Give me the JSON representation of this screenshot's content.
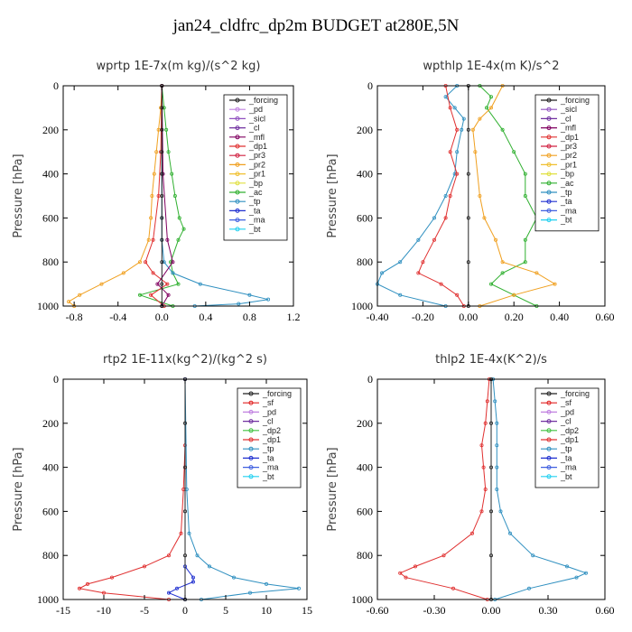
{
  "suptitle": "jan24_cldfrc_dp2m  BUDGET at280E,5N",
  "colors": {
    "_forcing": "#222222",
    "_sf": "#e02020",
    "_pd": "#c080e0",
    "_sicl": "#9050c0",
    "_cl": "#7030a0",
    "_mfl": "#800060",
    "_dp1": "#e03030",
    "_dp2": "#40c040",
    "_pr3": "#d02040",
    "_pr2": "#f0a020",
    "_pr1": "#f0c030",
    "_bp": "#e0e040",
    "_ac": "#30b030",
    "_tp": "#3090c0",
    "_ta": "#2030d0",
    "_ma": "#4060e0",
    "_bt": "#20d0f0"
  },
  "chart_data": [
    {
      "type": "line",
      "title": "wprtp   1E-7x(m kg)/(s^2 kg)",
      "ylabel": "Pressure [hPa]",
      "xlim": [
        -0.9,
        1.2
      ],
      "xticks": [
        "-0.8",
        "-0.4",
        "0.0",
        "0.4",
        "0.8",
        "1.2"
      ],
      "xtick_values": [
        -0.8,
        -0.4,
        0.0,
        0.4,
        0.8,
        1.2
      ],
      "ylim": [
        1000,
        0
      ],
      "yticks": [
        "0",
        "200",
        "400",
        "600",
        "800",
        "1000"
      ],
      "ytick_values": [
        0,
        200,
        400,
        600,
        800,
        1000
      ],
      "legend": [
        "_forcing",
        "_pd",
        "_sicl",
        "_cl",
        "_mfl",
        "_dp1",
        "_pr3",
        "_pr2",
        "_pr1",
        "_bp",
        "_ac",
        "_tp",
        "_ta",
        "_ma",
        "_bt"
      ],
      "series": [
        {
          "name": "_ac",
          "pressure": [
            0,
            100,
            200,
            300,
            400,
            500,
            600,
            650,
            700,
            800,
            850,
            900,
            950,
            1000
          ],
          "values": [
            0,
            0.02,
            0.04,
            0.06,
            0.09,
            0.12,
            0.16,
            0.2,
            0.15,
            0.08,
            0.1,
            0.15,
            -0.2,
            0.1
          ]
        },
        {
          "name": "_pr2",
          "pressure": [
            0,
            100,
            200,
            300,
            400,
            500,
            600,
            700,
            800,
            850,
            900,
            950,
            980,
            1000
          ],
          "values": [
            0,
            -0.01,
            -0.03,
            -0.05,
            -0.07,
            -0.09,
            -0.1,
            -0.12,
            -0.2,
            -0.35,
            -0.55,
            -0.75,
            -0.85,
            -0.8
          ]
        },
        {
          "name": "_tp",
          "pressure": [
            0,
            200,
            400,
            600,
            700,
            800,
            850,
            900,
            950,
            970,
            990,
            1000
          ],
          "values": [
            0,
            0,
            0,
            0,
            0,
            0.02,
            0.1,
            0.35,
            0.8,
            0.97,
            0.7,
            0.3
          ]
        },
        {
          "name": "_dp1",
          "pressure": [
            0,
            300,
            500,
            700,
            800,
            850,
            900,
            950,
            1000
          ],
          "values": [
            0,
            -0.01,
            -0.03,
            -0.08,
            -0.15,
            -0.08,
            0.05,
            -0.1,
            0.02
          ]
        },
        {
          "name": "_mfl",
          "pressure": [
            0,
            400,
            700,
            800,
            900,
            950,
            1000
          ],
          "values": [
            0,
            0.01,
            0.05,
            0.1,
            -0.04,
            0.06,
            0
          ]
        },
        {
          "name": "_forcing",
          "pressure": [
            0,
            100,
            200,
            300,
            400,
            500,
            600,
            700,
            800,
            900,
            1000
          ],
          "values": [
            0,
            0,
            0,
            0,
            0,
            0,
            0,
            0,
            0,
            0,
            0
          ]
        }
      ]
    },
    {
      "type": "line",
      "title": "wpthlp   1E-4x(m K)/s^2",
      "ylabel": "Pressure [hPa]",
      "xlim": [
        -0.4,
        0.6
      ],
      "xticks": [
        "-0.40",
        "-0.20",
        "0.00",
        "0.20",
        "0.40",
        "0.60"
      ],
      "xtick_values": [
        -0.4,
        -0.2,
        0.0,
        0.2,
        0.4,
        0.6
      ],
      "ylim": [
        1000,
        0
      ],
      "yticks": [
        "0",
        "200",
        "400",
        "600",
        "800",
        "1000"
      ],
      "ytick_values": [
        0,
        200,
        400,
        600,
        800,
        1000
      ],
      "legend": [
        "_forcing",
        "_sicl",
        "_cl",
        "_mfl",
        "_dp1",
        "_pr3",
        "_pr2",
        "_pr1",
        "_bp",
        "_ac",
        "_tp",
        "_ta",
        "_ma",
        "_bt"
      ],
      "series": [
        {
          "name": "_tp",
          "pressure": [
            0,
            50,
            100,
            150,
            200,
            300,
            400,
            500,
            600,
            700,
            800,
            850,
            900,
            950,
            1000
          ],
          "values": [
            -0.05,
            -0.1,
            -0.06,
            -0.02,
            -0.03,
            -0.05,
            -0.06,
            -0.1,
            -0.15,
            -0.22,
            -0.3,
            -0.38,
            -0.4,
            -0.3,
            -0.1
          ]
        },
        {
          "name": "_ac",
          "pressure": [
            0,
            50,
            100,
            200,
            300,
            400,
            500,
            600,
            700,
            800,
            850,
            900,
            950,
            1000
          ],
          "values": [
            0.05,
            0.1,
            0.08,
            0.15,
            0.2,
            0.25,
            0.25,
            0.3,
            0.25,
            0.25,
            0.15,
            0.1,
            0.2,
            0.3
          ]
        },
        {
          "name": "_pr2",
          "pressure": [
            0,
            100,
            150,
            200,
            300,
            500,
            600,
            700,
            800,
            850,
            900,
            950,
            1000
          ],
          "values": [
            0.15,
            0.1,
            0.05,
            0.02,
            0.03,
            0.05,
            0.07,
            0.12,
            0.15,
            0.3,
            0.38,
            0.2,
            0.05
          ]
        },
        {
          "name": "_dp1",
          "pressure": [
            0,
            100,
            200,
            300,
            400,
            500,
            600,
            700,
            800,
            850,
            900,
            950,
            1000
          ],
          "values": [
            -0.1,
            -0.08,
            -0.05,
            -0.08,
            -0.05,
            -0.08,
            -0.1,
            -0.15,
            -0.2,
            -0.22,
            -0.12,
            -0.05,
            -0.02
          ]
        },
        {
          "name": "_forcing",
          "pressure": [
            0,
            200,
            400,
            600,
            800,
            1000
          ],
          "values": [
            0,
            0,
            0,
            0,
            0,
            0
          ]
        }
      ]
    },
    {
      "type": "line",
      "title": "rtp2   1E-11x(kg^2)/(kg^2 s)",
      "ylabel": "Pressure [hPa]",
      "xlim": [
        -15,
        15
      ],
      "xticks": [
        "-15",
        "-10",
        "-5",
        "0",
        "5",
        "10",
        "15"
      ],
      "xtick_values": [
        -15,
        -10,
        -5,
        0,
        5,
        10,
        15
      ],
      "ylim": [
        1000,
        0
      ],
      "yticks": [
        "0",
        "200",
        "400",
        "600",
        "800",
        "1000"
      ],
      "ytick_values": [
        0,
        200,
        400,
        600,
        800,
        1000
      ],
      "legend": [
        "_forcing",
        "_sf",
        "_pd",
        "_cl",
        "_dp2",
        "_dp1",
        "_tp",
        "_ta",
        "_ma",
        "_bt"
      ],
      "series": [
        {
          "name": "_dp1",
          "pressure": [
            0,
            300,
            500,
            700,
            800,
            850,
            900,
            930,
            950,
            970,
            1000
          ],
          "values": [
            0,
            0,
            -0.2,
            -0.5,
            -2,
            -5,
            -9,
            -12,
            -13,
            -10,
            -2
          ]
        },
        {
          "name": "_tp",
          "pressure": [
            0,
            500,
            700,
            800,
            850,
            900,
            930,
            950,
            970,
            1000
          ],
          "values": [
            0,
            0.2,
            0.5,
            1.5,
            3,
            6,
            10,
            14,
            8,
            2
          ]
        },
        {
          "name": "_ta",
          "pressure": [
            0,
            850,
            900,
            920,
            950,
            970,
            1000
          ],
          "values": [
            0,
            0,
            1,
            1,
            -1,
            -2,
            0
          ]
        },
        {
          "name": "_forcing",
          "pressure": [
            0,
            200,
            400,
            600,
            800,
            1000
          ],
          "values": [
            0,
            0,
            0,
            0,
            0,
            0
          ]
        }
      ]
    },
    {
      "type": "line",
      "title": "thlp2   1E-4x(K^2)/s",
      "ylabel": "Pressure [hPa]",
      "xlim": [
        -0.6,
        0.6
      ],
      "xticks": [
        "-0.60",
        "-0.30",
        "0.00",
        "0.30",
        "0.60"
      ],
      "xtick_values": [
        -0.6,
        -0.3,
        0.0,
        0.3,
        0.6
      ],
      "ylim": [
        1000,
        0
      ],
      "yticks": [
        "0",
        "200",
        "400",
        "600",
        "800",
        "1000"
      ],
      "ytick_values": [
        0,
        200,
        400,
        600,
        800,
        1000
      ],
      "legend": [
        "_forcing",
        "_sf",
        "_pd",
        "_cl",
        "_dp2",
        "_dp1",
        "_tp",
        "_ta",
        "_ma",
        "_bt"
      ],
      "series": [
        {
          "name": "_dp1",
          "pressure": [
            0,
            100,
            200,
            300,
            400,
            500,
            600,
            700,
            800,
            850,
            880,
            900,
            950,
            1000
          ],
          "values": [
            -0.01,
            -0.02,
            -0.03,
            -0.05,
            -0.04,
            -0.03,
            -0.05,
            -0.1,
            -0.25,
            -0.4,
            -0.48,
            -0.45,
            -0.2,
            -0.02
          ]
        },
        {
          "name": "_tp",
          "pressure": [
            0,
            100,
            200,
            300,
            400,
            500,
            600,
            700,
            800,
            850,
            880,
            900,
            950,
            1000
          ],
          "values": [
            0.01,
            0.02,
            0.03,
            0.03,
            0.03,
            0.03,
            0.05,
            0.1,
            0.22,
            0.4,
            0.5,
            0.45,
            0.2,
            0.02
          ]
        },
        {
          "name": "_forcing",
          "pressure": [
            0,
            200,
            400,
            600,
            800,
            1000
          ],
          "values": [
            0,
            0,
            0,
            0,
            0,
            0
          ]
        }
      ]
    }
  ]
}
